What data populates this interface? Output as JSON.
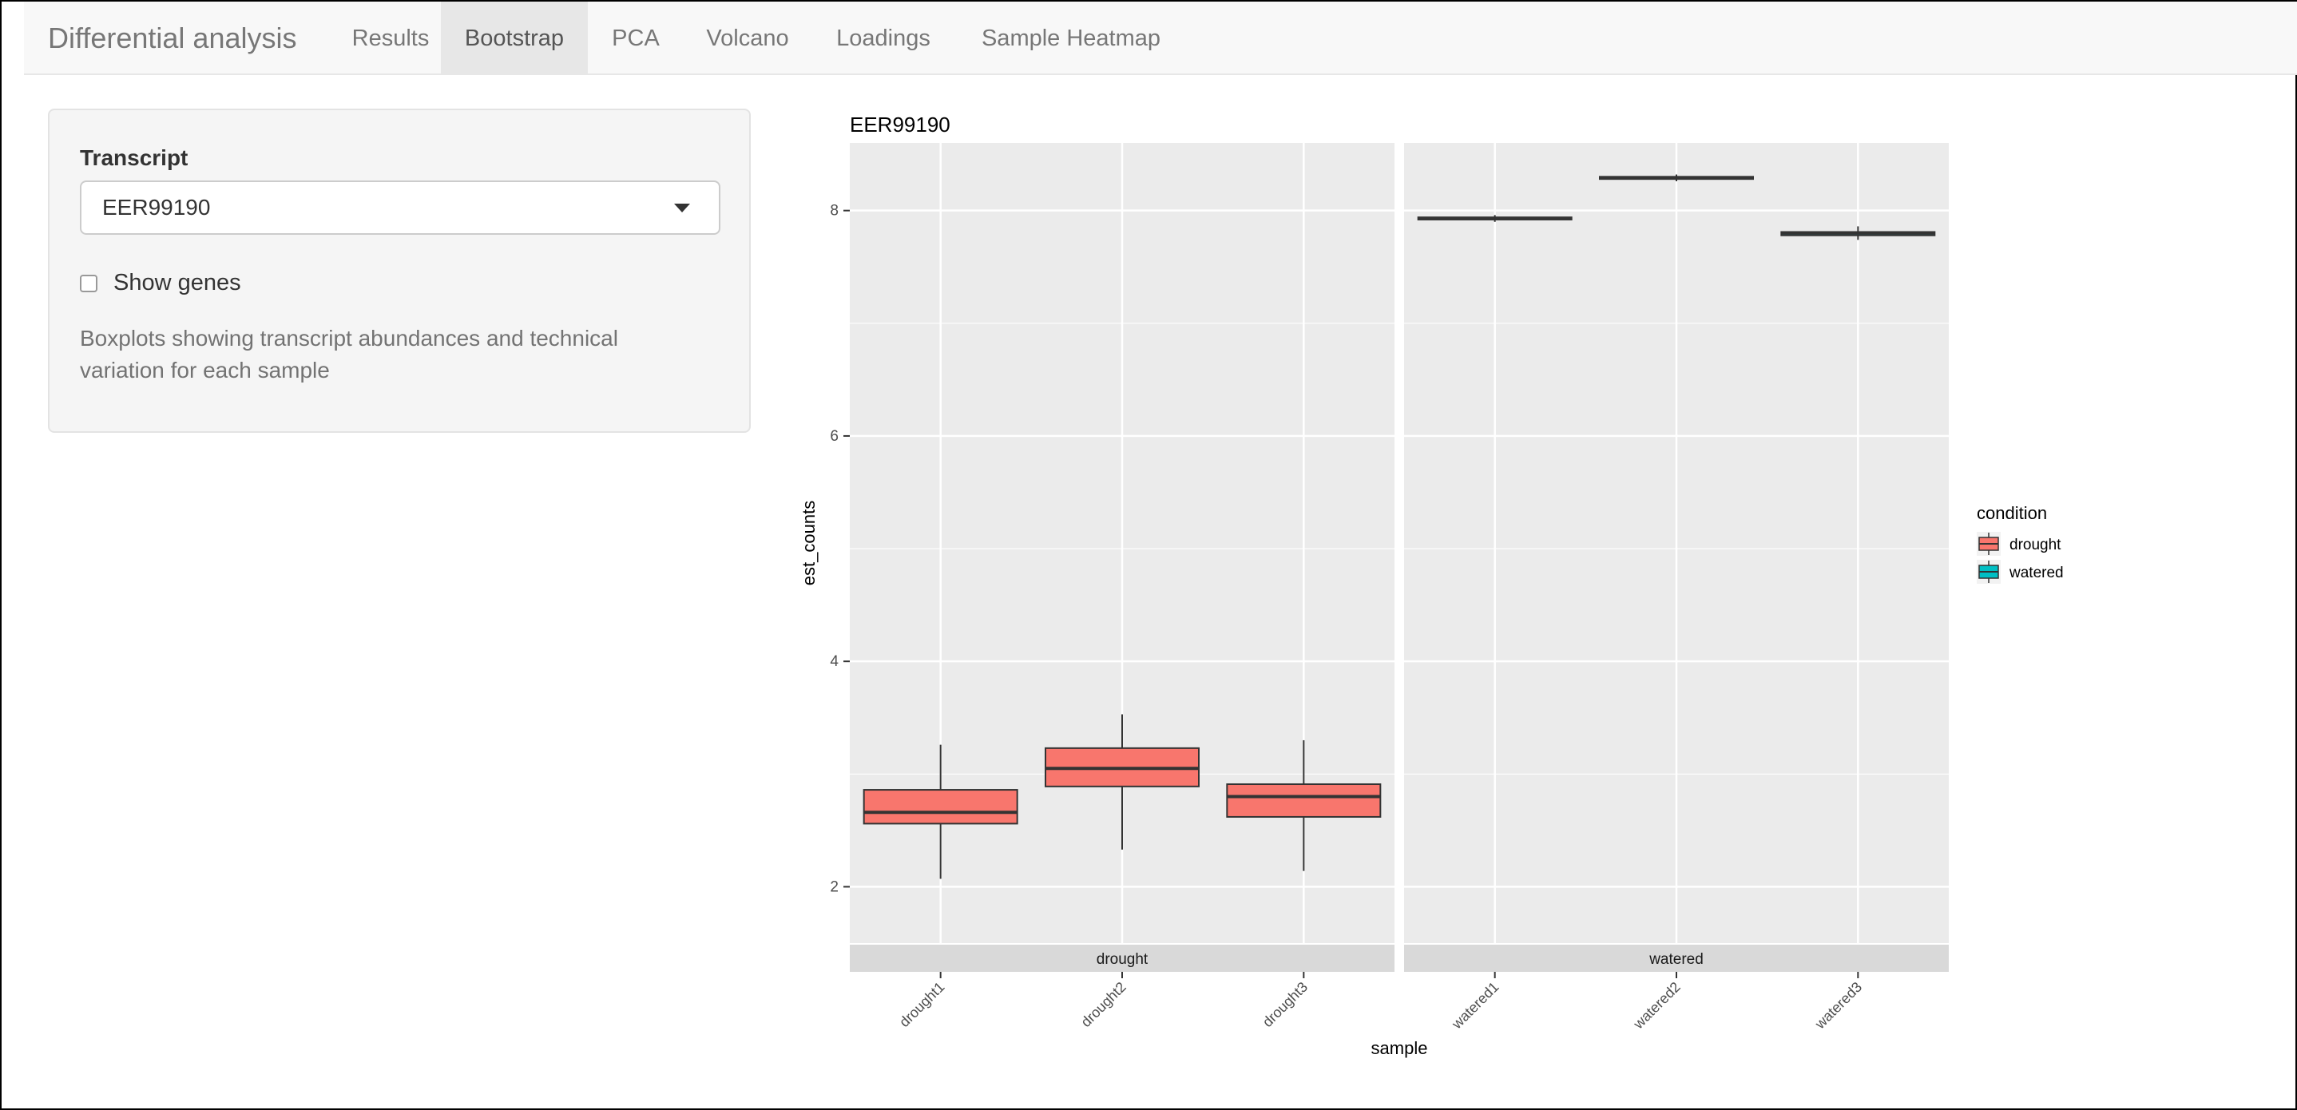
{
  "navbar": {
    "brand": "Differential analysis",
    "tabs": [
      {
        "label": "Results",
        "active": false
      },
      {
        "label": "Bootstrap",
        "active": true
      },
      {
        "label": "PCA",
        "active": false
      },
      {
        "label": "Volcano",
        "active": false
      },
      {
        "label": "Loadings",
        "active": false
      },
      {
        "label": "Sample Heatmap",
        "active": false
      }
    ]
  },
  "sidebar": {
    "transcript_label": "Transcript",
    "transcript_value": "EER99190",
    "show_genes_label": "Show genes",
    "show_genes_checked": false,
    "help_text": "Boxplots showing transcript abundances and technical variation for each sample"
  },
  "chart_data": {
    "type": "boxplot",
    "title": "EER99190",
    "xlabel": "sample",
    "ylabel": "est_counts",
    "ylim": [
      1.5,
      8.6
    ],
    "yticks": [
      2,
      4,
      6,
      8
    ],
    "grid": true,
    "legend": {
      "title": "condition",
      "placement": "right",
      "entries": [
        {
          "name": "drought",
          "color": "#F8766D"
        },
        {
          "name": "watered",
          "color": "#00BFC4"
        }
      ]
    },
    "facets": [
      {
        "label": "drought",
        "samples": [
          {
            "name": "drought1",
            "condition": "drought",
            "min": 2.07,
            "q1": 2.56,
            "median": 2.66,
            "q3": 2.86,
            "max": 3.26
          },
          {
            "name": "drought2",
            "condition": "drought",
            "min": 2.33,
            "q1": 2.89,
            "median": 3.05,
            "q3": 3.23,
            "max": 3.53
          },
          {
            "name": "drought3",
            "condition": "drought",
            "min": 2.14,
            "q1": 2.62,
            "median": 2.8,
            "q3": 2.91,
            "max": 3.3
          }
        ]
      },
      {
        "label": "watered",
        "samples": [
          {
            "name": "watered1",
            "condition": "watered",
            "min": 7.9,
            "q1": 7.92,
            "median": 7.93,
            "q3": 7.94,
            "max": 7.96
          },
          {
            "name": "watered2",
            "condition": "watered",
            "min": 8.26,
            "q1": 8.28,
            "median": 8.29,
            "q3": 8.3,
            "max": 8.32
          },
          {
            "name": "watered3",
            "condition": "watered",
            "min": 7.74,
            "q1": 7.78,
            "median": 7.8,
            "q3": 7.81,
            "max": 7.86
          }
        ]
      }
    ]
  },
  "colors": {
    "panel_bg": "#EBEBEB",
    "strip_bg": "#D9D9D9",
    "grid": "#FFFFFF",
    "box_outline": "#333333"
  }
}
